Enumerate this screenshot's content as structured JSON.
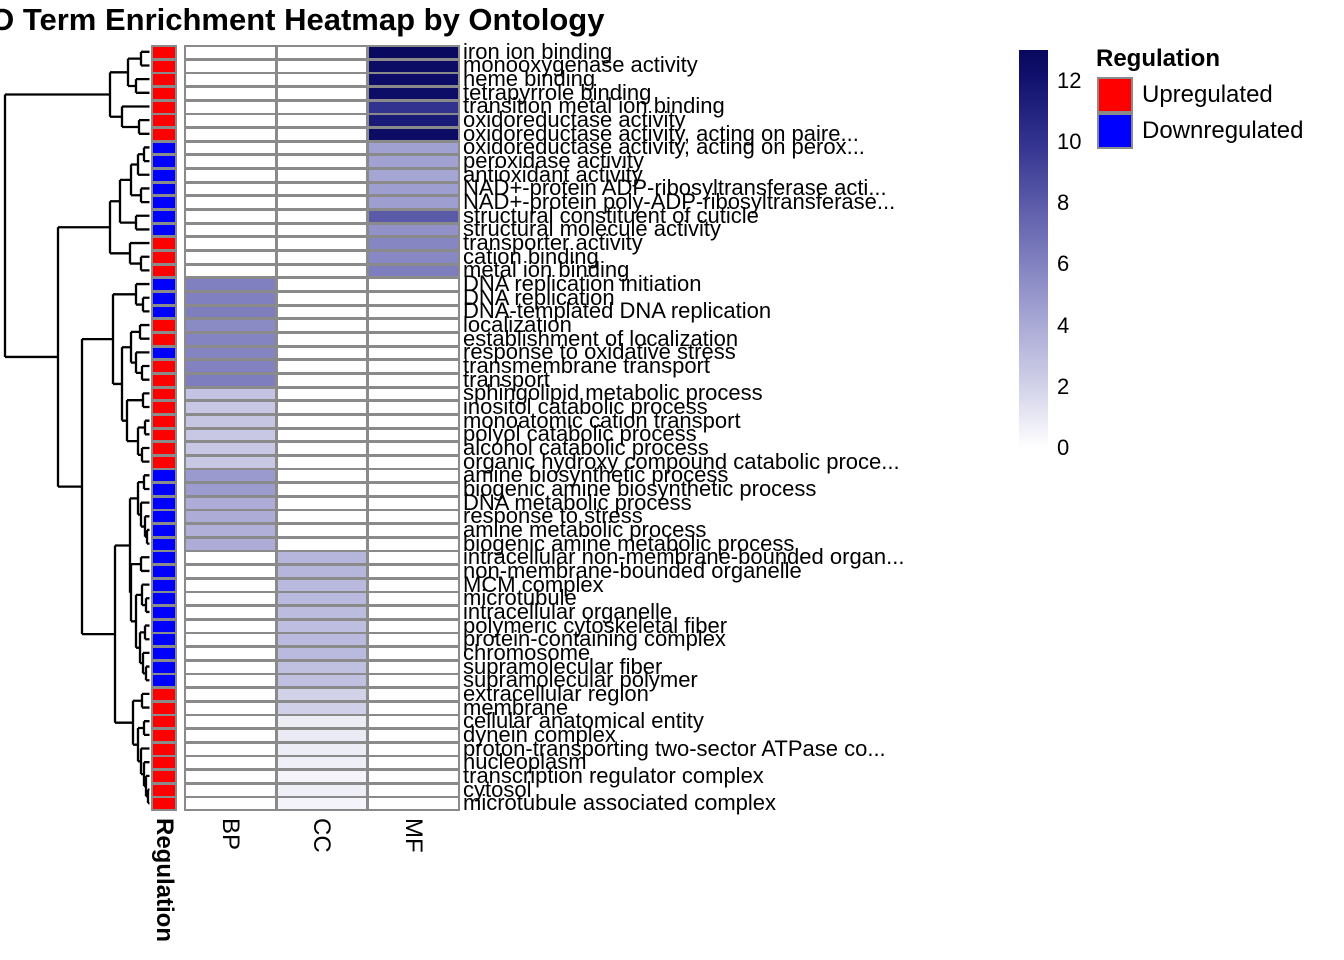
{
  "title": "GO Term Enrichment Heatmap by Ontology",
  "axis": {
    "annotation_label": "Regulation",
    "column_labels": [
      "BP",
      "CC",
      "MF"
    ]
  },
  "legend": {
    "title": "Regulation",
    "items": [
      {
        "label": "Upregulated",
        "color": "#ff0000"
      },
      {
        "label": "Downregulated",
        "color": "#0000ff"
      }
    ]
  },
  "colorbar": {
    "ticks": [
      12,
      10,
      8,
      6,
      4,
      2,
      0
    ]
  },
  "colors": {
    "upregulated": "#ff0000",
    "downregulated": "#0000ff",
    "cell_border": "#8a8a8a",
    "heat_scale_stops": [
      {
        "value": 0,
        "color": "#ffffff"
      },
      {
        "value": 2,
        "color": "#d2d2e9"
      },
      {
        "value": 4,
        "color": "#aaaad6"
      },
      {
        "value": 6,
        "color": "#8282c1"
      },
      {
        "value": 8,
        "color": "#5a5aa9"
      },
      {
        "value": 10,
        "color": "#32328f"
      },
      {
        "value": 12,
        "color": "#12126f"
      },
      {
        "value": 13,
        "color": "#08085e"
      }
    ]
  },
  "chart_data": {
    "type": "heatmap",
    "columns": [
      "BP",
      "CC",
      "MF"
    ],
    "value_scale": {
      "min": 0,
      "max": 13,
      "legend_ticks": [
        12,
        10,
        8,
        6,
        4,
        2,
        0
      ]
    },
    "rows": [
      {
        "term": "iron ion binding",
        "regulation": "Upregulated",
        "ontology": "MF",
        "value": 12.9
      },
      {
        "term": "monooxygenase activity",
        "regulation": "Upregulated",
        "ontology": "MF",
        "value": 12.6
      },
      {
        "term": "heme binding",
        "regulation": "Upregulated",
        "ontology": "MF",
        "value": 12.5
      },
      {
        "term": "tetrapyrrole binding",
        "regulation": "Upregulated",
        "ontology": "MF",
        "value": 12.5
      },
      {
        "term": "transition metal ion binding",
        "regulation": "Upregulated",
        "ontology": "MF",
        "value": 10.0
      },
      {
        "term": "oxidoreductase activity",
        "regulation": "Upregulated",
        "ontology": "MF",
        "value": 11.5
      },
      {
        "term": "oxidoreductase activity, acting on paire...",
        "regulation": "Upregulated",
        "ontology": "MF",
        "value": 12.6
      },
      {
        "term": "oxidoreductase activity, acting on perox...",
        "regulation": "Downregulated",
        "ontology": "MF",
        "value": 4.5
      },
      {
        "term": "peroxidase activity",
        "regulation": "Downregulated",
        "ontology": "MF",
        "value": 4.4
      },
      {
        "term": "antioxidant activity",
        "regulation": "Downregulated",
        "ontology": "MF",
        "value": 4.2
      },
      {
        "term": "NAD+-protein ADP-ribosyltransferase acti...",
        "regulation": "Downregulated",
        "ontology": "MF",
        "value": 4.6
      },
      {
        "term": "NAD+-protein poly-ADP-ribosyltransferase...",
        "regulation": "Downregulated",
        "ontology": "MF",
        "value": 4.6
      },
      {
        "term": "structural constituent of cuticle",
        "regulation": "Downregulated",
        "ontology": "MF",
        "value": 8.0
      },
      {
        "term": "structural molecule activity",
        "regulation": "Downregulated",
        "ontology": "MF",
        "value": 5.2
      },
      {
        "term": "transporter activity",
        "regulation": "Upregulated",
        "ontology": "MF",
        "value": 5.8
      },
      {
        "term": "cation binding",
        "regulation": "Upregulated",
        "ontology": "MF",
        "value": 5.7
      },
      {
        "term": "metal ion binding",
        "regulation": "Upregulated",
        "ontology": "MF",
        "value": 6.2
      },
      {
        "term": "DNA replication initiation",
        "regulation": "Downregulated",
        "ontology": "BP",
        "value": 6.1
      },
      {
        "term": "DNA replication",
        "regulation": "Downregulated",
        "ontology": "BP",
        "value": 6.1
      },
      {
        "term": "DNA-templated DNA replication",
        "regulation": "Downregulated",
        "ontology": "BP",
        "value": 6.2
      },
      {
        "term": "localization",
        "regulation": "Upregulated",
        "ontology": "BP",
        "value": 5.6
      },
      {
        "term": "establishment of localization",
        "regulation": "Upregulated",
        "ontology": "BP",
        "value": 5.9
      },
      {
        "term": "response to oxidative stress",
        "regulation": "Downregulated",
        "ontology": "BP",
        "value": 5.9
      },
      {
        "term": "transmembrane transport",
        "regulation": "Upregulated",
        "ontology": "BP",
        "value": 6.0
      },
      {
        "term": "transport",
        "regulation": "Upregulated",
        "ontology": "BP",
        "value": 6.2
      },
      {
        "term": "sphingolipid metabolic process",
        "regulation": "Upregulated",
        "ontology": "BP",
        "value": 2.7
      },
      {
        "term": "inositol catabolic process",
        "regulation": "Upregulated",
        "ontology": "BP",
        "value": 2.5
      },
      {
        "term": "monoatomic cation transport",
        "regulation": "Upregulated",
        "ontology": "BP",
        "value": 2.6
      },
      {
        "term": "polyol catabolic process",
        "regulation": "Upregulated",
        "ontology": "BP",
        "value": 2.5
      },
      {
        "term": "alcohol catabolic process",
        "regulation": "Upregulated",
        "ontology": "BP",
        "value": 2.5
      },
      {
        "term": "organic hydroxy compound catabolic proce...",
        "regulation": "Upregulated",
        "ontology": "BP",
        "value": 2.5
      },
      {
        "term": "amine biosynthetic process",
        "regulation": "Downregulated",
        "ontology": "BP",
        "value": 4.8
      },
      {
        "term": "biogenic amine biosynthetic process",
        "regulation": "Downregulated",
        "ontology": "BP",
        "value": 4.7
      },
      {
        "term": "DNA metabolic process",
        "regulation": "Downregulated",
        "ontology": "BP",
        "value": 3.9
      },
      {
        "term": "response to stress",
        "regulation": "Downregulated",
        "ontology": "BP",
        "value": 3.9
      },
      {
        "term": "amine metabolic process",
        "regulation": "Downregulated",
        "ontology": "BP",
        "value": 3.7
      },
      {
        "term": "biogenic amine metabolic process",
        "regulation": "Downregulated",
        "ontology": "BP",
        "value": 3.9
      },
      {
        "term": "intracellular non-membrane-bounded organ...",
        "regulation": "Downregulated",
        "ontology": "CC",
        "value": 3.4
      },
      {
        "term": "non-membrane-bounded organelle",
        "regulation": "Downregulated",
        "ontology": "CC",
        "value": 3.4
      },
      {
        "term": "MCM complex",
        "regulation": "Downregulated",
        "ontology": "CC",
        "value": 3.2
      },
      {
        "term": "microtubule",
        "regulation": "Downregulated",
        "ontology": "CC",
        "value": 3.2
      },
      {
        "term": "intracellular organelle",
        "regulation": "Downregulated",
        "ontology": "CC",
        "value": 3.1
      },
      {
        "term": "polymeric cytoskeletal fiber",
        "regulation": "Downregulated",
        "ontology": "CC",
        "value": 3.0
      },
      {
        "term": "protein-containing complex",
        "regulation": "Downregulated",
        "ontology": "CC",
        "value": 3.2
      },
      {
        "term": "chromosome",
        "regulation": "Downregulated",
        "ontology": "CC",
        "value": 3.2
      },
      {
        "term": "supramolecular fiber",
        "regulation": "Downregulated",
        "ontology": "CC",
        "value": 2.9
      },
      {
        "term": "supramolecular polymer",
        "regulation": "Downregulated",
        "ontology": "CC",
        "value": 2.9
      },
      {
        "term": "extracellular region",
        "regulation": "Upregulated",
        "ontology": "CC",
        "value": 2.0
      },
      {
        "term": "membrane",
        "regulation": "Upregulated",
        "ontology": "CC",
        "value": 2.1
      },
      {
        "term": "cellular anatomical entity",
        "regulation": "Upregulated",
        "ontology": "CC",
        "value": 0.8
      },
      {
        "term": "dynein complex",
        "regulation": "Upregulated",
        "ontology": "CC",
        "value": 0.9
      },
      {
        "term": "proton-transporting two-sector ATPase co...",
        "regulation": "Upregulated",
        "ontology": "CC",
        "value": 0.8
      },
      {
        "term": "nucleoplasm",
        "regulation": "Upregulated",
        "ontology": "CC",
        "value": 0.7
      },
      {
        "term": "transcription regulator complex",
        "regulation": "Upregulated",
        "ontology": "CC",
        "value": 0.5
      },
      {
        "term": "cytosol",
        "regulation": "Upregulated",
        "ontology": "CC",
        "value": 0.7
      },
      {
        "term": "microtubule associated complex",
        "regulation": "Upregulated",
        "ontology": "CC",
        "value": 0.5
      }
    ]
  }
}
